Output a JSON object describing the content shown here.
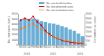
{
  "chart_data": {
    "type": "bar",
    "categories": [
      "Nov",
      "Dec",
      "Jan",
      "Feb",
      "Mar",
      "Apr",
      "May",
      "Jun",
      "Jul",
      "Aug",
      "Sep",
      "Oct",
      "Nov",
      "Dec",
      "Jan",
      "Feb"
    ],
    "series": [
      {
        "name": "No. new health facilities",
        "type": "bar",
        "color": "#6baed6",
        "values": [
          4800,
          5000,
          5000,
          5100,
          4900,
          4600,
          4400,
          4200,
          4100,
          3900,
          3600,
          3400,
          3000,
          2700,
          2200,
          1700
        ]
      },
      {
        "name": "No. new observed cases",
        "type": "line",
        "axis": "y2",
        "color": "#c00000",
        "line_style": "solid",
        "marker": "circle",
        "values": [
          2800,
          3000,
          2800,
          3200,
          2600,
          2200,
          1600,
          1200,
          900,
          700,
          500,
          400,
          300,
          250,
          200,
          150
        ]
      },
      {
        "name": "No. new estimated cases",
        "type": "line",
        "axis": "y2",
        "color": "#ed7d31",
        "line_style": "dashed",
        "marker": "square",
        "values": [
          1800,
          2000,
          2200,
          2400,
          2000,
          1800,
          1400,
          1100,
          900,
          750,
          600,
          500,
          400,
          350,
          300,
          250
        ]
      }
    ],
    "ylabel": "No. new cases (cum.)",
    "y2label": "Cumulative no. cases",
    "ylim": [
      0,
      6000
    ],
    "yticks": [
      0,
      1000,
      2000,
      3000,
      4000,
      5000,
      6000
    ],
    "y2lim": [
      0,
      3500
    ],
    "y2ticks": [
      0,
      500,
      1000,
      1500,
      2000,
      2500,
      3000,
      3500
    ],
    "annotations": [
      {
        "text": "2014",
        "x": 1.5
      },
      {
        "text": "2015",
        "x": 8.0
      },
      {
        "text": "2016",
        "x": 14.5
      }
    ],
    "legend": "upper right",
    "grid": false
  }
}
